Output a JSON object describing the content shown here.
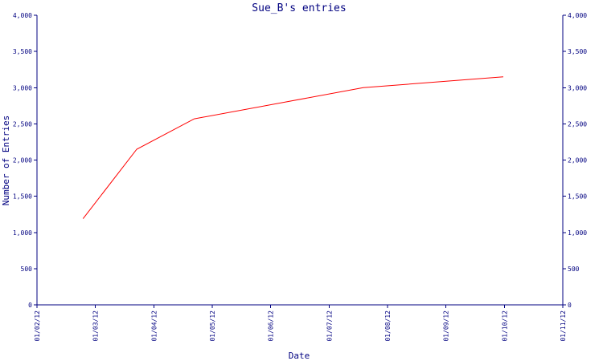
{
  "colors": {
    "axis": "#000080",
    "series": "#ff0000",
    "background": "#ffffff"
  },
  "chart_data": {
    "type": "line",
    "title": "Sue_B's entries",
    "xlabel": "Date",
    "ylabel": "Number of Entries",
    "grid": false,
    "legend": "none",
    "ylim": [
      0,
      4000
    ],
    "yticks": [
      0,
      500,
      1000,
      1500,
      2000,
      2500,
      3000,
      3500,
      4000
    ],
    "ytick_labels": [
      "0",
      "500",
      "1,000",
      "1,500",
      "2,000",
      "2,500",
      "3,000",
      "3,500",
      "4,000"
    ],
    "xticks": [
      "01/02/12",
      "01/03/12",
      "01/04/12",
      "01/05/12",
      "01/06/12",
      "01/07/12",
      "01/08/12",
      "01/09/12",
      "01/10/12",
      "01/11/12"
    ],
    "series": [
      {
        "x": [
          "2012-02-25",
          "2012-03-24",
          "2012-04-23",
          "2012-07-20",
          "2012-10-01"
        ],
        "values": [
          1190,
          2150,
          2570,
          3000,
          3150
        ]
      }
    ]
  }
}
